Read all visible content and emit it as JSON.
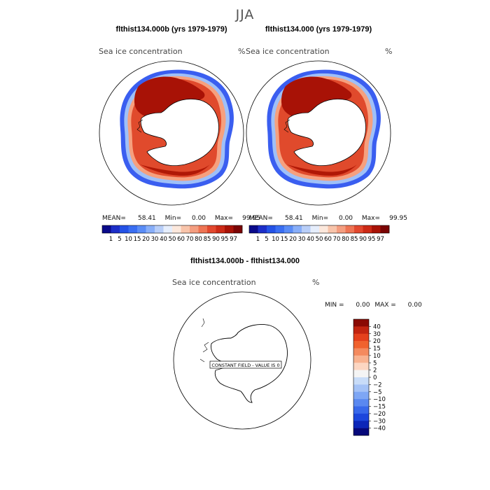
{
  "season": "JJA",
  "panels": [
    {
      "title": "flthist134.000b (yrs 1979-1979)",
      "variable": "Sea ice concentration",
      "unit": "%",
      "mean_label": "MEAN=",
      "mean": "58.41",
      "min_label": "Min=",
      "min": "0.00",
      "max_label": "Max=",
      "max": "99.95"
    },
    {
      "title": "flthist134.000 (yrs 1979-1979)",
      "variable": "Sea ice concentration",
      "unit": "%",
      "mean_label": "MEAN=",
      "mean": "58.41",
      "min_label": "Min=",
      "min": "0.00",
      "max_label": "Max=",
      "max": "99.95"
    }
  ],
  "colorbar": {
    "colors": [
      "#0a0a8a",
      "#1c2ec8",
      "#2452e6",
      "#3a6ef2",
      "#5a8cf6",
      "#88aef8",
      "#b8cef8",
      "#e6eefc",
      "#fce8dc",
      "#f8c4aa",
      "#f49e80",
      "#ee7454",
      "#e2482e",
      "#cc2a16",
      "#a81206",
      "#7a0404"
    ],
    "labels": [
      "1",
      "5",
      "10",
      "15",
      "20",
      "30",
      "40",
      "50",
      "60",
      "70",
      "80",
      "85",
      "90",
      "95",
      "97"
    ]
  },
  "diff": {
    "title": "flthist134.000b - flthist134.000",
    "variable": "Sea ice concentration",
    "unit": "%",
    "min_label": "MIN =",
    "min": "0.00",
    "max_label": "MAX =",
    "max": "0.00",
    "notice": "CONSTANT FIELD - VALUE IS 0",
    "colorbar": {
      "colors": [
        "#8a0a04",
        "#c22410",
        "#e4401c",
        "#f0622e",
        "#f48a5e",
        "#f8b290",
        "#fcd6c2",
        "#f4f4f4",
        "#c8dcf8",
        "#a4c2f6",
        "#7ea6f4",
        "#5a88f0",
        "#3868ea",
        "#1c46dc",
        "#0c26b8",
        "#06087a"
      ],
      "labels": [
        "40",
        "30",
        "20",
        "15",
        "10",
        "5",
        "2",
        "0",
        "−2",
        "−5",
        "−10",
        "−15",
        "−20",
        "−30",
        "−40"
      ]
    }
  }
}
